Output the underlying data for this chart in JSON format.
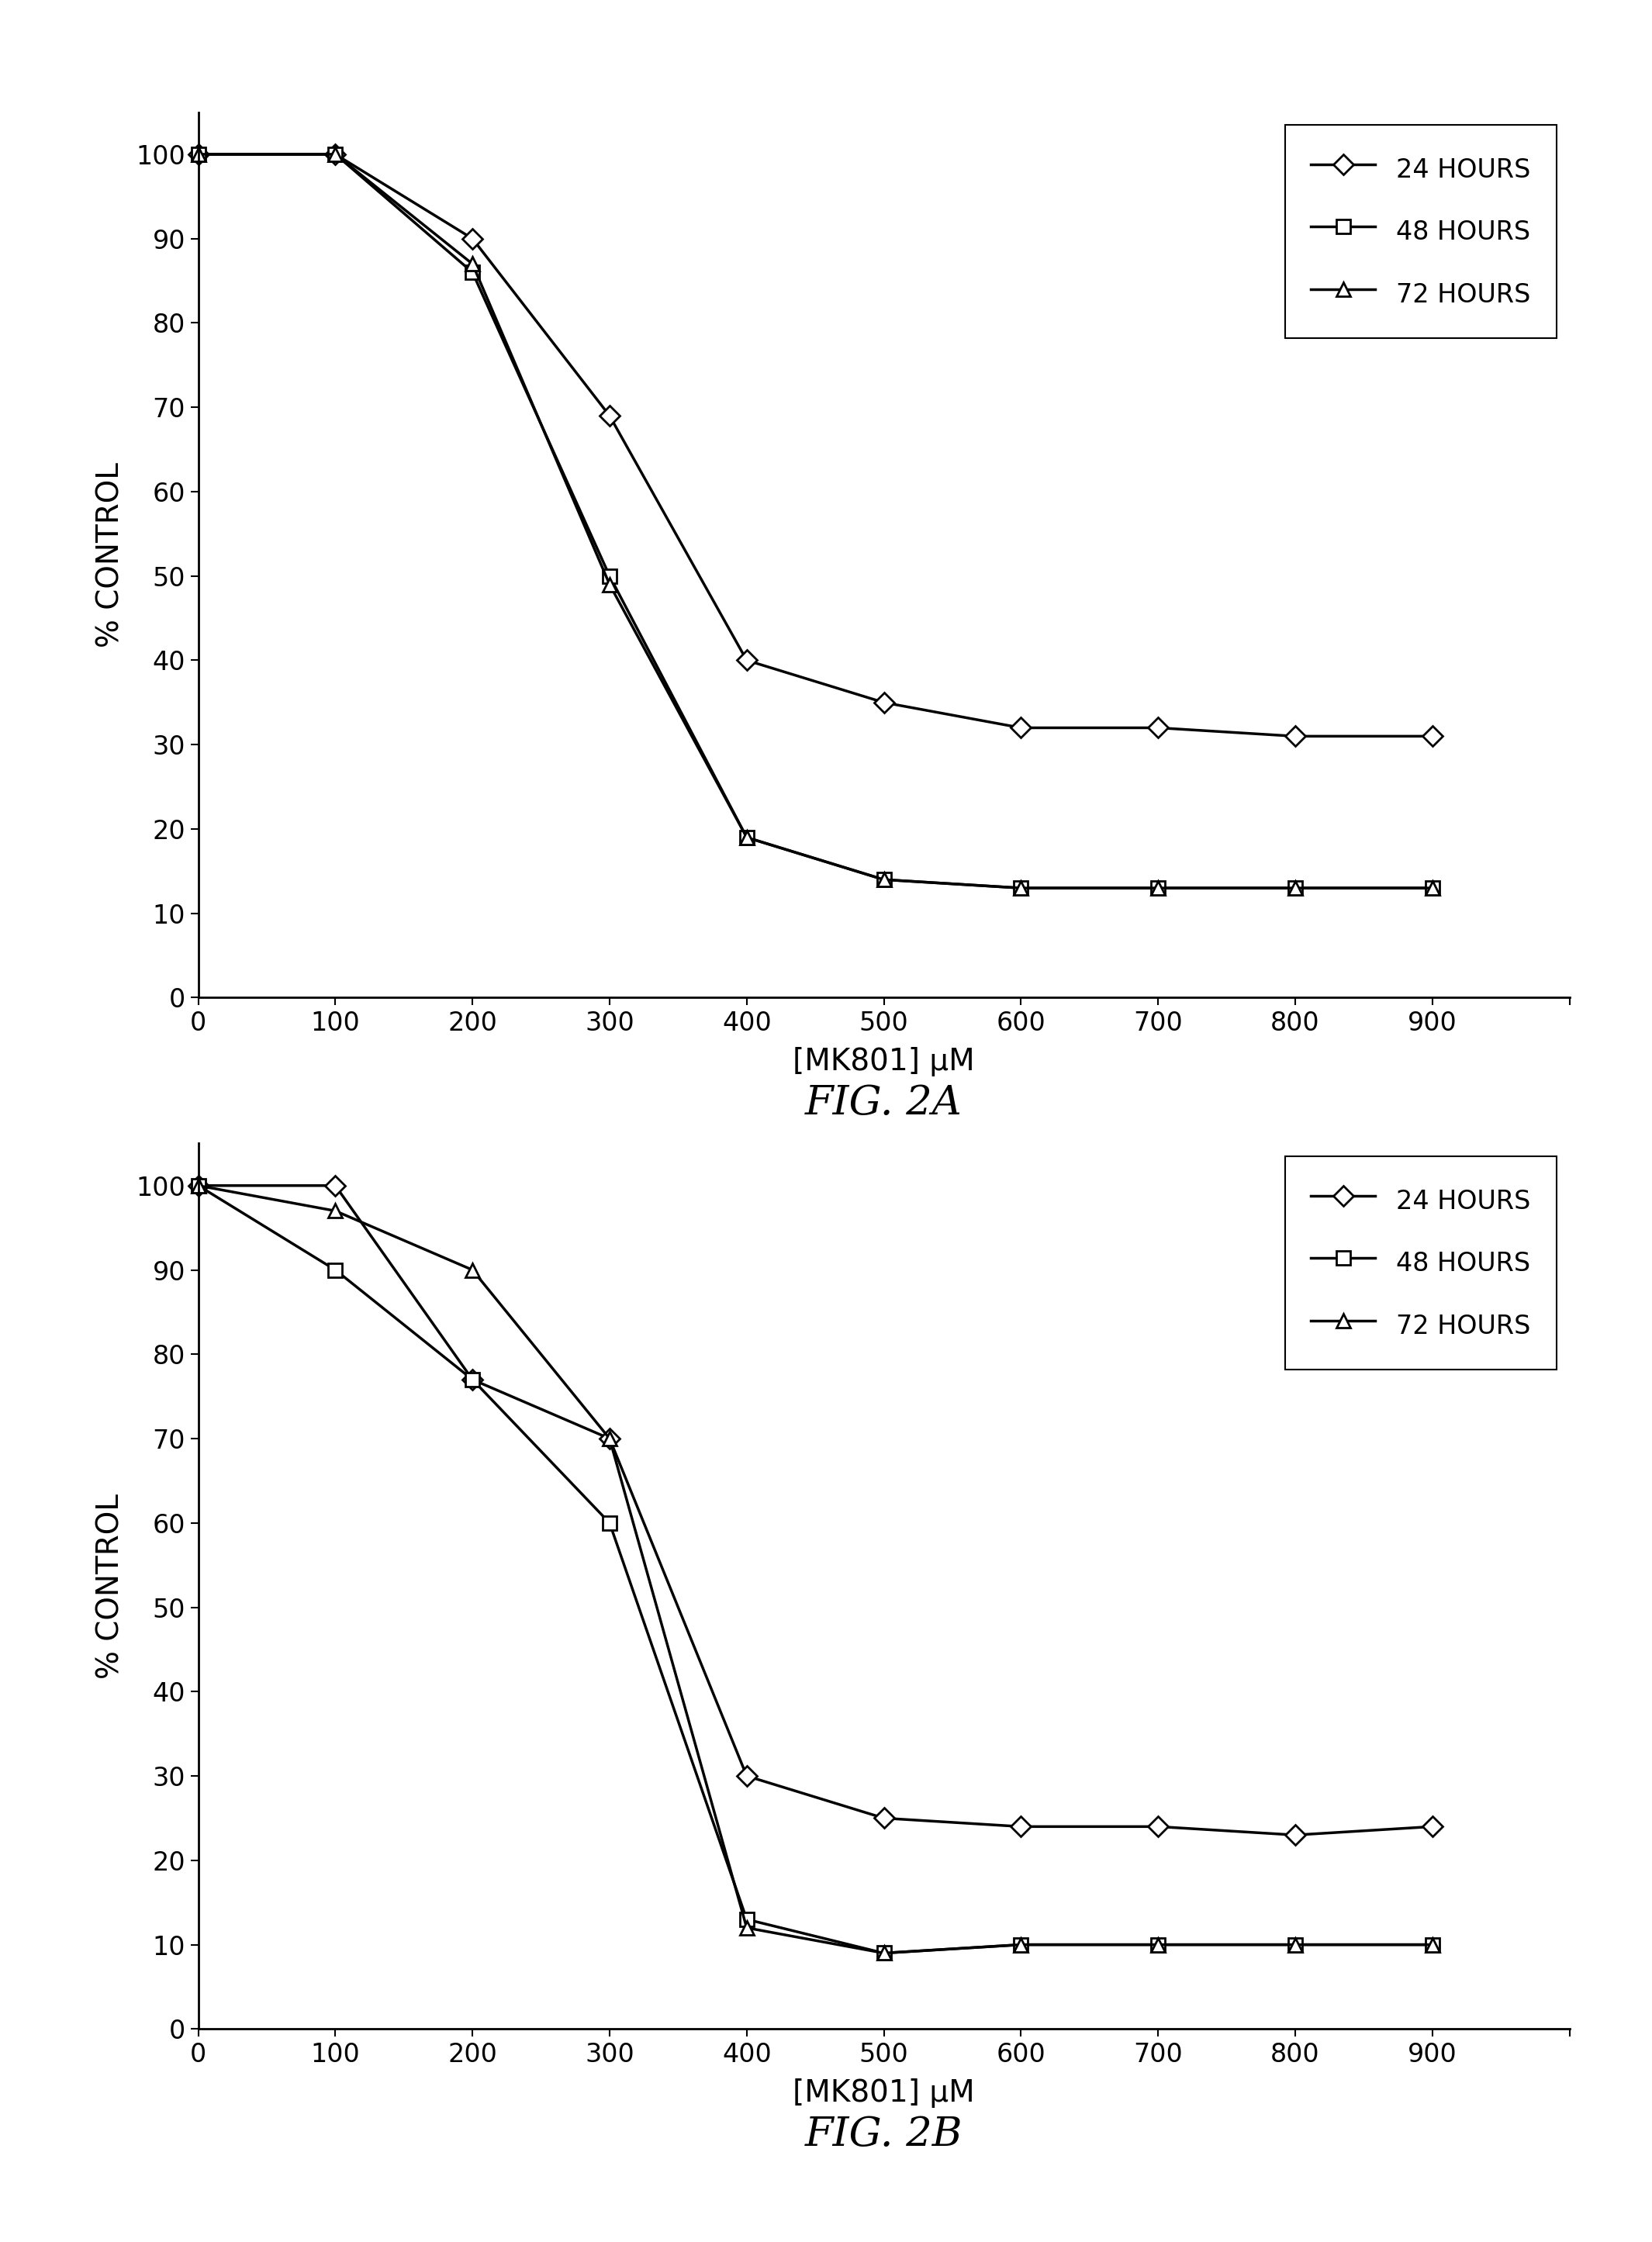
{
  "fig2a": {
    "x": [
      0,
      100,
      200,
      300,
      400,
      500,
      600,
      700,
      800,
      900
    ],
    "y_24h": [
      100,
      100,
      90,
      69,
      40,
      35,
      32,
      32,
      31,
      31
    ],
    "y_48h": [
      100,
      100,
      86,
      50,
      19,
      14,
      13,
      13,
      13,
      13
    ],
    "y_72h": [
      100,
      100,
      87,
      49,
      19,
      14,
      13,
      13,
      13,
      13
    ],
    "xlabel": "[MK801] μM",
    "ylabel": "% CONTROL",
    "caption": "FIG. 2A",
    "xlim": [
      0,
      1000
    ],
    "ylim": [
      0,
      105
    ],
    "yticks": [
      0,
      10,
      20,
      30,
      40,
      50,
      60,
      70,
      80,
      90,
      100
    ],
    "xticks": [
      0,
      100,
      200,
      300,
      400,
      500,
      600,
      700,
      800,
      900,
      1000
    ]
  },
  "fig2b": {
    "x": [
      0,
      100,
      200,
      300,
      400,
      500,
      600,
      700,
      800,
      900
    ],
    "y_24h": [
      100,
      100,
      77,
      70,
      30,
      25,
      24,
      24,
      23,
      24
    ],
    "y_48h": [
      100,
      90,
      77,
      60,
      13,
      9,
      10,
      10,
      10,
      10
    ],
    "y_72h": [
      100,
      97,
      90,
      70,
      12,
      9,
      10,
      10,
      10,
      10
    ],
    "xlabel": "[MK801] μM",
    "ylabel": "% CONTROL",
    "caption": "FIG. 2B",
    "xlim": [
      0,
      1000
    ],
    "ylim": [
      0,
      105
    ],
    "yticks": [
      0,
      10,
      20,
      30,
      40,
      50,
      60,
      70,
      80,
      90,
      100
    ],
    "xticks": [
      0,
      100,
      200,
      300,
      400,
      500,
      600,
      700,
      800,
      900,
      1000
    ]
  },
  "legend_labels": [
    "24 HOURS",
    "48 HOURS",
    "72 HOURS"
  ],
  "line_color": "#000000",
  "bg_color": "#ffffff",
  "fontsize_label": 28,
  "fontsize_tick": 24,
  "fontsize_legend": 24,
  "fontsize_caption": 38,
  "linewidth": 2.5,
  "markersize": 13
}
